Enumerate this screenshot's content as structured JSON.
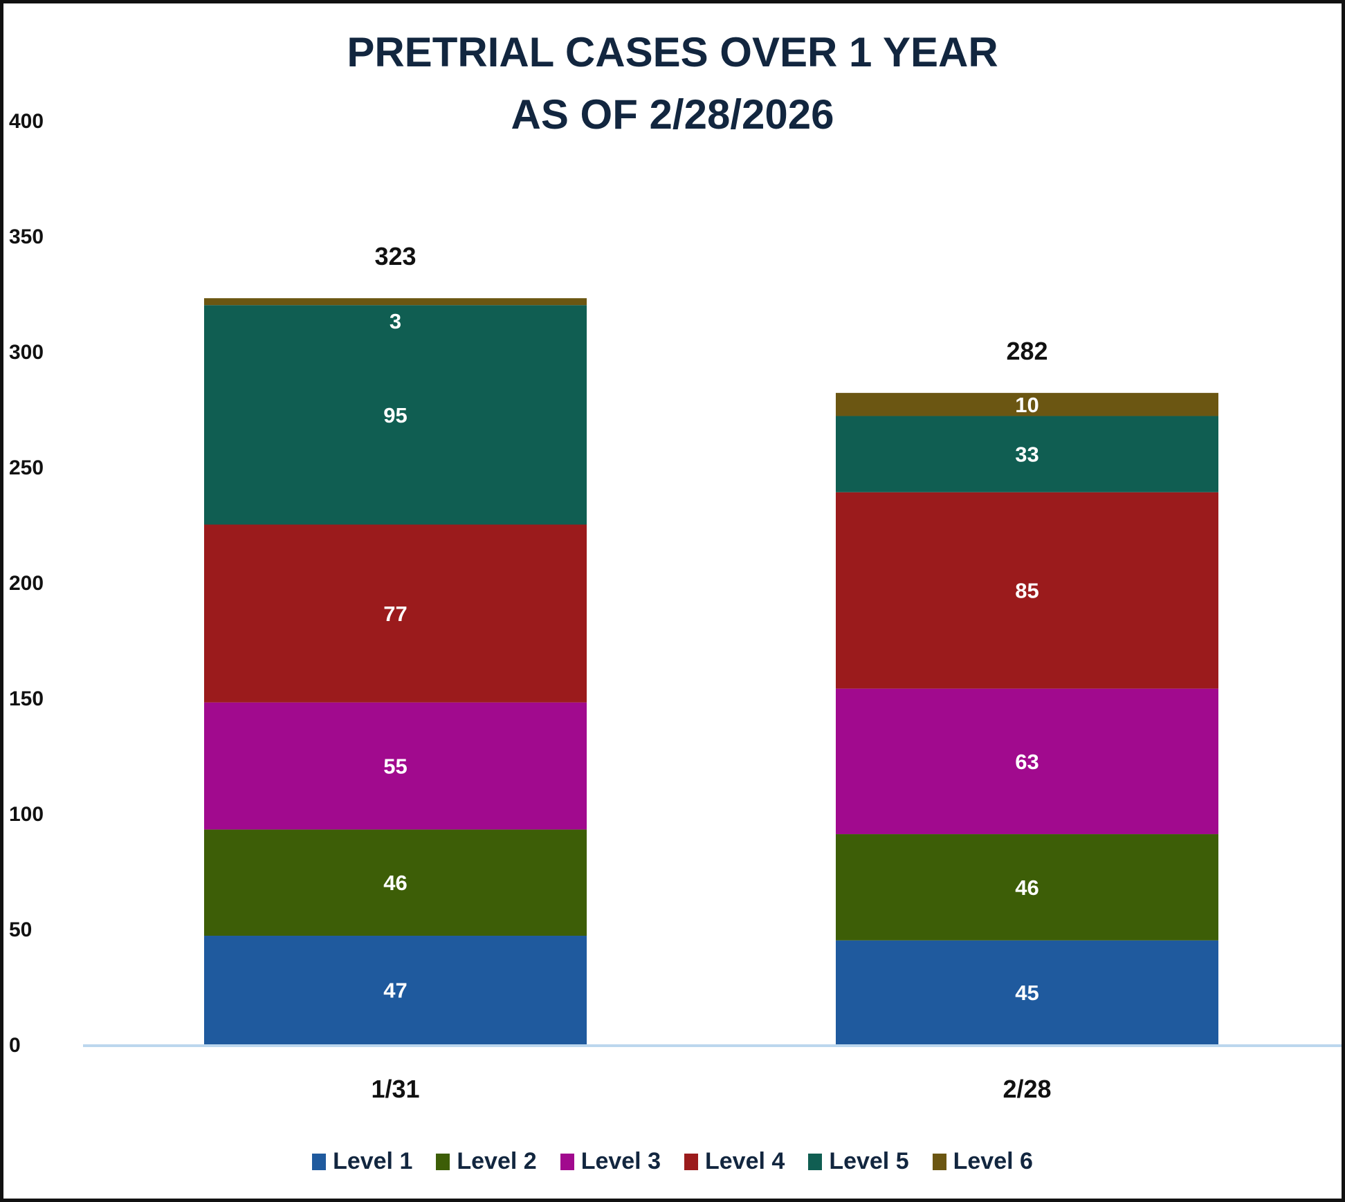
{
  "chart_data": {
    "type": "bar",
    "stacked": true,
    "title": [
      "PRETRIAL CASES OVER 1 YEAR",
      "AS OF 2/28/2026"
    ],
    "categories": [
      "1/31",
      "2/28"
    ],
    "series": [
      {
        "name": "Level 1",
        "color": "#1f5a9e",
        "values": [
          47,
          45
        ]
      },
      {
        "name": "Level 2",
        "color": "#3d5e07",
        "values": [
          46,
          46
        ]
      },
      {
        "name": "Level 3",
        "color": "#a10a8e",
        "values": [
          55,
          63
        ]
      },
      {
        "name": "Level 4",
        "color": "#9b1b1c",
        "values": [
          77,
          85
        ]
      },
      {
        "name": "Level 5",
        "color": "#105e52",
        "values": [
          95,
          33
        ]
      },
      {
        "name": "Level 6",
        "color": "#6b5612",
        "values": [
          3,
          10
        ]
      }
    ],
    "totals": [
      323,
      282
    ],
    "ylim": [
      0,
      400
    ],
    "yticks": [
      0,
      50,
      100,
      150,
      200,
      250,
      300,
      350,
      400
    ],
    "grid": false,
    "legend": "bottom",
    "title_color": "#12263f"
  }
}
